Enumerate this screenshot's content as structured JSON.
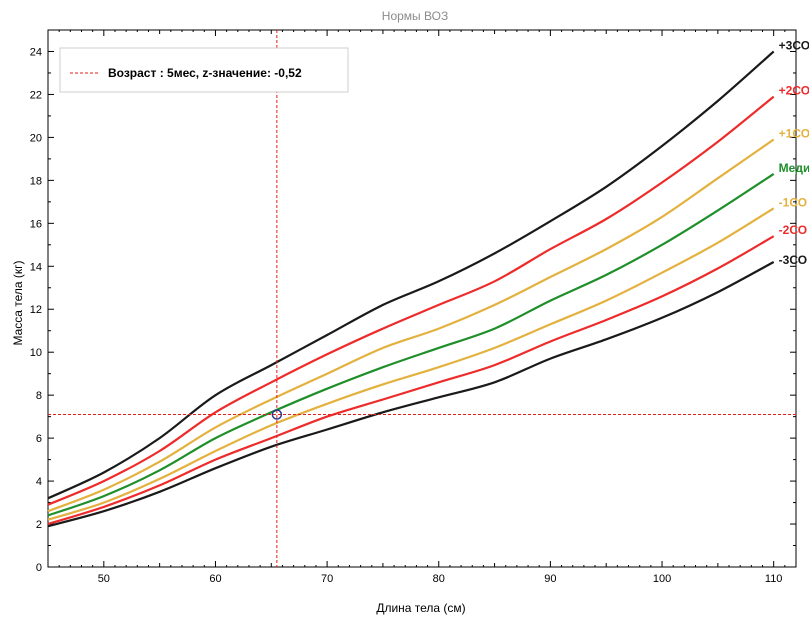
{
  "chart_data": {
    "type": "line",
    "title": "Нормы ВОЗ",
    "xlabel": "Длина тела (см)",
    "ylabel": "Масса тела (кг)",
    "xlim": [
      45,
      112
    ],
    "ylim": [
      0,
      25
    ],
    "xticks": [
      50,
      60,
      70,
      80,
      90,
      100,
      110
    ],
    "yticks": [
      0,
      2,
      4,
      6,
      8,
      10,
      12,
      14,
      16,
      18,
      20,
      22,
      24
    ],
    "grid": false,
    "legend_position": "top-left",
    "legend": {
      "label": "Возраст : 5мес, z-значение: -0,52",
      "color": "#e0201b"
    },
    "marker": {
      "x": 65.5,
      "y": 7.1,
      "color": "#2b3b8c"
    },
    "crosshair": {
      "x": 65.5,
      "y": 7.1,
      "color": "#e0201b"
    },
    "x": [
      45,
      50,
      55,
      60,
      65,
      70,
      75,
      80,
      85,
      90,
      95,
      100,
      105,
      110
    ],
    "series": [
      {
        "name": "+3СО",
        "color": "#1a1a1a",
        "values": [
          3.2,
          4.4,
          6.0,
          8.0,
          9.4,
          10.8,
          12.2,
          13.3,
          14.6,
          16.1,
          17.7,
          19.6,
          21.7,
          24.0
        ]
      },
      {
        "name": "+2СО",
        "color": "#ee2b2b",
        "values": [
          2.9,
          4.0,
          5.4,
          7.2,
          8.6,
          9.9,
          11.1,
          12.2,
          13.3,
          14.8,
          16.2,
          17.9,
          19.8,
          21.9
        ]
      },
      {
        "name": "+1СО",
        "color": "#e3b13e",
        "values": [
          2.6,
          3.6,
          4.9,
          6.5,
          7.8,
          9.0,
          10.2,
          11.1,
          12.2,
          13.5,
          14.8,
          16.3,
          18.1,
          19.9
        ]
      },
      {
        "name": "Медиана",
        "color": "#1f8f2a",
        "values": [
          2.4,
          3.3,
          4.5,
          6.0,
          7.2,
          8.3,
          9.3,
          10.2,
          11.1,
          12.4,
          13.6,
          15.0,
          16.6,
          18.3
        ]
      },
      {
        "name": "-1СО",
        "color": "#e3b13e",
        "values": [
          2.2,
          3.0,
          4.1,
          5.4,
          6.6,
          7.6,
          8.5,
          9.3,
          10.2,
          11.3,
          12.4,
          13.7,
          15.1,
          16.7
        ]
      },
      {
        "name": "-2СО",
        "color": "#ee2b2b",
        "values": [
          2.0,
          2.8,
          3.8,
          5.0,
          6.0,
          7.0,
          7.8,
          8.6,
          9.4,
          10.5,
          11.5,
          12.6,
          13.9,
          15.4
        ]
      },
      {
        "name": "-3СО",
        "color": "#1a1a1a",
        "values": [
          1.9,
          2.6,
          3.5,
          4.6,
          5.6,
          6.4,
          7.2,
          7.9,
          8.6,
          9.7,
          10.6,
          11.6,
          12.8,
          14.2
        ]
      }
    ]
  }
}
